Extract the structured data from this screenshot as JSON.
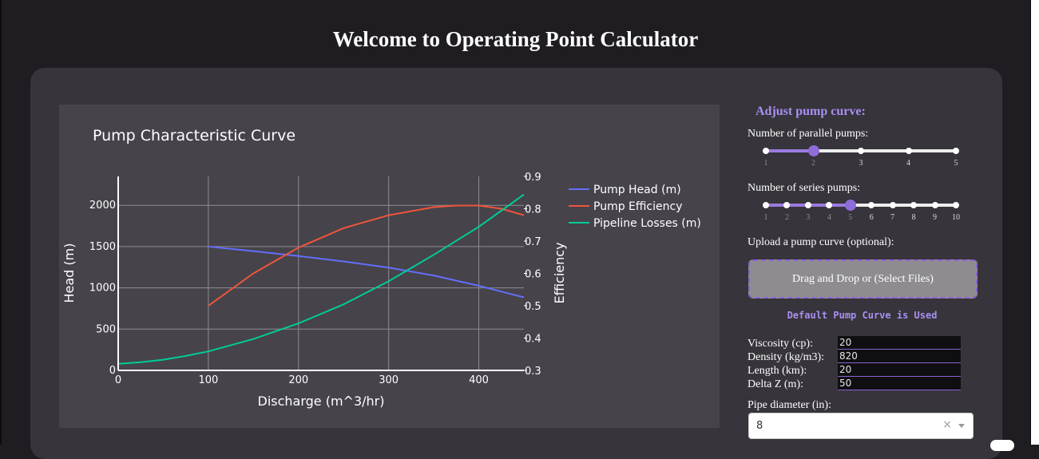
{
  "page": {
    "title": "Welcome to Operating Point Calculator"
  },
  "chart_data": {
    "type": "line",
    "title": "Pump Characteristic Curve",
    "xlabel": "Discharge (m^3/hr)",
    "ylabel": "Head (m)",
    "y2label": "Efficiency",
    "xlim": [
      0,
      450
    ],
    "ylim": [
      0,
      2350
    ],
    "y2lim": [
      0.3,
      0.9
    ],
    "xticks": [
      0,
      100,
      200,
      300,
      400
    ],
    "yticks": [
      0,
      500,
      1000,
      1500,
      2000
    ],
    "y2ticks": [
      0.3,
      0.4,
      0.5,
      0.6,
      0.7,
      0.8,
      0.9
    ],
    "grid": true,
    "legend_position": "right",
    "series": [
      {
        "name": "Pump Head (m)",
        "axis": "y",
        "color": "#636efa",
        "x": [
          100,
          150,
          200,
          250,
          300,
          350,
          400,
          450
        ],
        "y": [
          1500,
          1445,
          1385,
          1320,
          1245,
          1150,
          1025,
          885
        ]
      },
      {
        "name": "Pump Efficiency",
        "axis": "y2",
        "color": "#ef553b",
        "x": [
          100,
          150,
          200,
          250,
          300,
          350,
          375,
          400,
          425,
          450
        ],
        "y": [
          0.5,
          0.6,
          0.68,
          0.74,
          0.78,
          0.805,
          0.81,
          0.81,
          0.8,
          0.78
        ]
      },
      {
        "name": "Pipeline Losses (m)",
        "axis": "y",
        "color": "#00cc96",
        "x": [
          0,
          25,
          50,
          75,
          100,
          150,
          200,
          250,
          300,
          350,
          400,
          450
        ],
        "y": [
          80,
          100,
          130,
          175,
          230,
          380,
          570,
          800,
          1080,
          1400,
          1740,
          2130
        ]
      }
    ]
  },
  "controls": {
    "heading": "Adjust pump curve:",
    "parallel": {
      "label": "Number of parallel pumps:",
      "marks": [
        "1",
        "2",
        "3",
        "4",
        "5"
      ],
      "value": 2,
      "min": 1,
      "max": 5
    },
    "series": {
      "label": "Number of series pumps:",
      "marks": [
        "1",
        "2",
        "3",
        "4",
        "5",
        "6",
        "7",
        "8",
        "9",
        "10"
      ],
      "value": 5,
      "min": 1,
      "max": 10
    },
    "upload": {
      "label": "Upload a pump curve (optional):",
      "dropzone_text": "Drag and Drop or (Select Files)",
      "status": "Default Pump Curve is Used"
    },
    "params": [
      {
        "label": "Viscosity (cp):",
        "value": "20"
      },
      {
        "label": "Density (kg/m3):",
        "value": "820"
      },
      {
        "label": "Length (km):",
        "value": "20"
      },
      {
        "label": "Delta Z (m):",
        "value": "50"
      }
    ],
    "pipe_diameter": {
      "label": "Pipe diameter (in):",
      "value": "8",
      "clear_symbol": "×"
    }
  },
  "colors": {
    "accent": "#8f6dd8",
    "accent_text": "#a98ff0",
    "page_bg": "#1f1c22",
    "card_bg": "#37343b",
    "plot_bg": "#46434a"
  }
}
